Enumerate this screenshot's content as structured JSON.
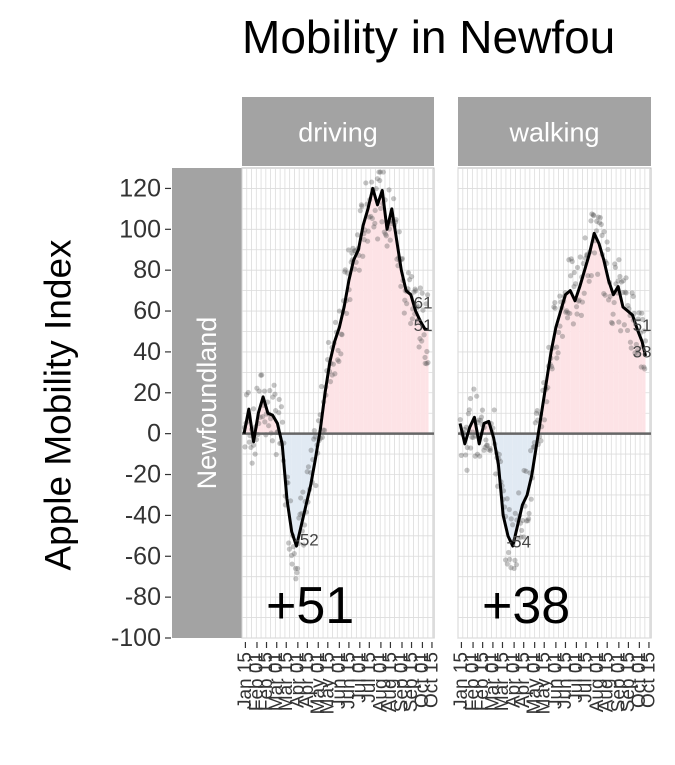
{
  "title": "Mobility in Newfou",
  "ylabel": "Apple Mobility Index",
  "row_label": "Newfoundland",
  "colors": {
    "strip": "#a3a3a3",
    "strip_text": "#ffffff",
    "panel_bg": "#ffffff",
    "grid": "#dcdcdc",
    "zero_line": "#666666",
    "line": "#000000",
    "points": "#555555",
    "area_pos": "#fde3e6",
    "area_neg": "#e1eaf3"
  },
  "chart_data": [
    {
      "type": "line",
      "panel": "driving",
      "row": "Newfoundland",
      "xlabel": "",
      "ylabel": "Apple Mobility Index",
      "x_tick_labels": [
        "Jan 15",
        "Feb 01",
        "Feb 15",
        "Mar 01",
        "Mar 15",
        "Apr 01",
        "Apr 15",
        "May 01",
        "May 15",
        "Jun 01",
        "Jun 15",
        "Jul 01",
        "Jul 15",
        "Aug 01",
        "Aug 15",
        "Sep 01",
        "Sep 15",
        "Oct 01",
        "Oct 15"
      ],
      "ylim": [
        -100,
        130
      ],
      "y_ticks": [
        120,
        100,
        80,
        60,
        40,
        20,
        0,
        -20,
        -40,
        -60,
        -80,
        -100
      ],
      "grid": true,
      "series": [
        {
          "x": [
            "Jan 13",
            "Jan 20",
            "Jan 27",
            "Feb 03",
            "Feb 10",
            "Feb 17",
            "Feb 24",
            "Mar 02",
            "Mar 09",
            "Mar 16",
            "Mar 23",
            "Mar 30",
            "Apr 06",
            "Apr 13",
            "Apr 20",
            "Apr 27",
            "May 04",
            "May 11",
            "May 18",
            "May 25",
            "Jun 01",
            "Jun 08",
            "Jun 15",
            "Jun 22",
            "Jun 29",
            "Jul 06",
            "Jul 13",
            "Jul 20",
            "Jul 27",
            "Aug 03",
            "Aug 10",
            "Aug 17",
            "Aug 24",
            "Aug 31",
            "Sep 07",
            "Sep 14",
            "Sep 21",
            "Sep 28",
            "Oct 05",
            "Oct 10"
          ],
          "y": [
            0,
            12,
            -4,
            10,
            18,
            10,
            9,
            5,
            -5,
            -32,
            -48,
            -55,
            -45,
            -35,
            -25,
            -12,
            2,
            20,
            35,
            45,
            52,
            62,
            75,
            85,
            90,
            102,
            110,
            120,
            112,
            119,
            100,
            110,
            95,
            80,
            70,
            68,
            60,
            55,
            51,
            51
          ]
        }
      ],
      "annotations": [
        "-52",
        "61",
        "51"
      ],
      "big_label": "+51"
    },
    {
      "type": "line",
      "panel": "walking",
      "row": "Newfoundland",
      "xlabel": "",
      "x_tick_labels": [
        "Jan 15",
        "Feb 01",
        "Feb 15",
        "Mar 01",
        "Mar 15",
        "Apr 01",
        "Apr 15",
        "May 01",
        "May 15",
        "Jun 01",
        "Jun 15",
        "Jul 01",
        "Jul 15",
        "Aug 01",
        "Aug 15",
        "Sep 01",
        "Sep 15",
        "Oct 01",
        "Oct 15"
      ],
      "ylim": [
        -100,
        130
      ],
      "grid": true,
      "series": [
        {
          "x": [
            "Jan 13",
            "Jan 20",
            "Jan 27",
            "Feb 03",
            "Feb 10",
            "Feb 17",
            "Feb 24",
            "Mar 02",
            "Mar 09",
            "Mar 16",
            "Mar 23",
            "Mar 30",
            "Apr 06",
            "Apr 13",
            "Apr 20",
            "Apr 27",
            "May 04",
            "May 11",
            "May 18",
            "May 25",
            "Jun 01",
            "Jun 08",
            "Jun 15",
            "Jun 22",
            "Jun 29",
            "Jul 06",
            "Jul 13",
            "Jul 20",
            "Jul 27",
            "Aug 03",
            "Aug 10",
            "Aug 17",
            "Aug 24",
            "Aug 31",
            "Sep 07",
            "Sep 14",
            "Sep 21",
            "Sep 28",
            "Oct 05",
            "Oct 10"
          ],
          "y": [
            5,
            -5,
            3,
            8,
            -5,
            5,
            6,
            -2,
            -15,
            -40,
            -50,
            -55,
            -45,
            -35,
            -30,
            -20,
            -5,
            10,
            25,
            40,
            52,
            60,
            68,
            70,
            65,
            72,
            80,
            88,
            98,
            93,
            85,
            75,
            68,
            72,
            62,
            60,
            58,
            51,
            45,
            38
          ]
        }
      ],
      "annotations": [
        "-54",
        "51",
        "38"
      ],
      "big_label": "+38"
    }
  ]
}
